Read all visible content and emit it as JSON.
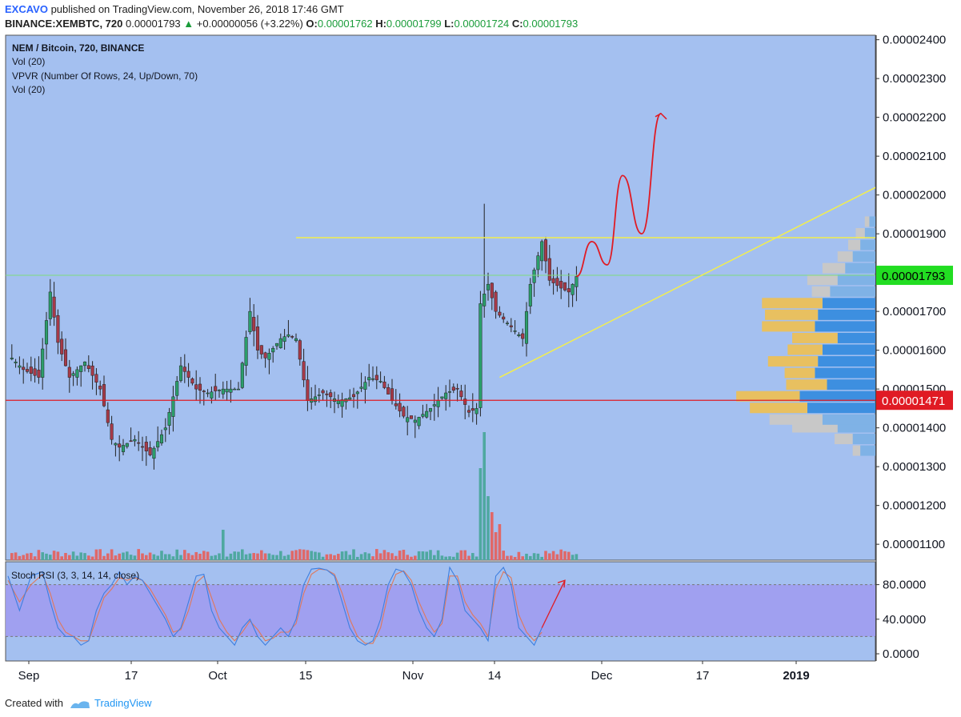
{
  "header": {
    "author": "EXCAVO",
    "published": "published on TradingView.com, November 26, 2018 17:46 GMT",
    "symbol": "BINANCE:XEMBTC, 720",
    "price": "0.00001793",
    "change_arrow": "▲",
    "change": "+0.00000056 (+3.22%)",
    "o_label": "O:",
    "o": "0.00001762",
    "h_label": "H:",
    "h": "0.00001799",
    "l_label": "L:",
    "l": "0.00001724",
    "c_label": "C:",
    "c": "0.00001793"
  },
  "legend": {
    "title": "NEM / Bitcoin, 720, BINANCE",
    "vol1": "Vol (20)",
    "vpvr": "VPVR (Number Of Rows, 24, Up/Down, 70)",
    "vol2": "Vol (20)",
    "stoch": "Stoch RSI (3, 3, 14, 14, close)"
  },
  "footer": {
    "created_with": "Created with",
    "brand": "TradingView",
    "logo_icon": "tradingview-logo-icon"
  },
  "colors": {
    "background": "#a4c0f0",
    "candle_up": "#2b9e6b",
    "candle_down": "#a63a48",
    "vol_up": "#4fa8a0",
    "vol_down": "#e06868",
    "vpvr_up": "#3d8fe0",
    "vpvr_down": "#e8c060",
    "resistance": "#f2ee4e",
    "support": "#e01b24",
    "forecast": "#e01b24",
    "current_price_badge": "#22dd22",
    "stoch_k": "#3d7fe0",
    "stoch_d": "#e0785a",
    "stoch_band": "#a09cf0"
  },
  "chart_data": [
    {
      "type": "candlestick",
      "title": "NEM / Bitcoin, 720, BINANCE",
      "x_ticks": [
        "Sep",
        "17",
        "Oct",
        "15",
        "Nov",
        "14",
        "Dec",
        "17",
        "2019"
      ],
      "y_ticks": [
        "0.00002400",
        "0.00002300",
        "0.00002200",
        "0.00002100",
        "0.00002000",
        "0.00001900",
        "0.00001800",
        "0.00001700",
        "0.00001600",
        "0.00001500",
        "0.00001400",
        "0.00001300",
        "0.00001200",
        "0.00001100"
      ],
      "ylim": [
        1.06e-05,
        2.45e-05
      ],
      "price_labels": {
        "current": "0.00001793",
        "support": "0.00001471"
      },
      "levels": {
        "current": 1.793e-05,
        "support": 1.471e-05,
        "resistance": 1.89e-05
      },
      "close_path": [
        [
          0,
          1.59e-05
        ],
        [
          4,
          1.55e-05
        ],
        [
          8,
          1.53e-05
        ],
        [
          11,
          1.75e-05
        ],
        [
          13,
          1.62e-05
        ],
        [
          16,
          1.53e-05
        ],
        [
          20,
          1.57e-05
        ],
        [
          24,
          1.5e-05
        ],
        [
          27,
          1.37e-05
        ],
        [
          29,
          1.35e-05
        ],
        [
          33,
          1.37e-05
        ],
        [
          37,
          1.33e-05
        ],
        [
          41,
          1.4e-05
        ],
        [
          45,
          1.56e-05
        ],
        [
          49,
          1.5e-05
        ],
        [
          52,
          1.49e-05
        ],
        [
          56,
          1.5e-05
        ],
        [
          60,
          1.5e-05
        ],
        [
          63,
          1.7e-05
        ],
        [
          65,
          1.6e-05
        ],
        [
          67,
          1.58e-05
        ],
        [
          71,
          1.63e-05
        ],
        [
          73,
          1.64e-05
        ],
        [
          75,
          1.63e-05
        ],
        [
          78,
          1.47e-05
        ],
        [
          82,
          1.49e-05
        ],
        [
          86,
          1.47e-05
        ],
        [
          90,
          1.48e-05
        ],
        [
          94,
          1.53e-05
        ],
        [
          97,
          1.52e-05
        ],
        [
          100,
          1.47e-05
        ],
        [
          103,
          1.43e-05
        ],
        [
          106,
          1.42e-05
        ],
        [
          110,
          1.45e-05
        ],
        [
          114,
          1.49e-05
        ],
        [
          117,
          1.5e-05
        ],
        [
          120,
          1.44e-05
        ],
        [
          122,
          1.45e-05
        ],
        [
          123,
          1.72e-05
        ],
        [
          125,
          1.77e-05
        ],
        [
          127,
          1.7e-05
        ],
        [
          131,
          1.66e-05
        ],
        [
          134,
          1.63e-05
        ],
        [
          136,
          1.77e-05
        ],
        [
          139,
          1.88e-05
        ],
        [
          141,
          1.78e-05
        ],
        [
          144,
          1.76e-05
        ],
        [
          146,
          1.75e-05
        ],
        [
          148,
          1.79e-05
        ]
      ],
      "forecast_path": [
        [
          148,
          1.79e-05
        ],
        [
          152,
          1.88e-05
        ],
        [
          156,
          1.82e-05
        ],
        [
          160,
          2.05e-05
        ],
        [
          165,
          1.9e-05
        ],
        [
          170,
          2.21e-05
        ]
      ],
      "resistance_line": {
        "x": [
          75,
          230
        ],
        "y": [
          1.89e-05,
          1.89e-05
        ]
      },
      "ascending_support_line": {
        "x": [
          128,
          230
        ],
        "y": [
          1.53e-05,
          2.04e-05
        ]
      },
      "vpvr_rows": [
        {
          "price": 1.33e-05,
          "up": 0.1,
          "down": 0.05
        },
        {
          "price": 1.36e-05,
          "up": 0.15,
          "down": 0.12
        },
        {
          "price": 1.39e-05,
          "up": 0.25,
          "down": 0.3
        },
        {
          "price": 1.41e-05,
          "up": 0.35,
          "down": 0.35
        },
        {
          "price": 1.44e-05,
          "up": 0.45,
          "down": 0.38
        },
        {
          "price": 1.47e-05,
          "up": 0.5,
          "down": 0.42
        },
        {
          "price": 1.5e-05,
          "up": 0.32,
          "down": 0.27
        },
        {
          "price": 1.53e-05,
          "up": 0.4,
          "down": 0.2
        },
        {
          "price": 1.56e-05,
          "up": 0.38,
          "down": 0.33
        },
        {
          "price": 1.59e-05,
          "up": 0.35,
          "down": 0.23
        },
        {
          "price": 1.62e-05,
          "up": 0.25,
          "down": 0.3
        },
        {
          "price": 1.65e-05,
          "up": 0.4,
          "down": 0.35
        },
        {
          "price": 1.68e-05,
          "up": 0.38,
          "down": 0.35
        },
        {
          "price": 1.71e-05,
          "up": 0.35,
          "down": 0.4
        },
        {
          "price": 1.74e-05,
          "up": 0.3,
          "down": 0.12
        },
        {
          "price": 1.77e-05,
          "up": 0.25,
          "down": 0.2
        },
        {
          "price": 1.8e-05,
          "up": 0.2,
          "down": 0.15
        },
        {
          "price": 1.83e-05,
          "up": 0.15,
          "down": 0.1
        },
        {
          "price": 1.86e-05,
          "up": 0.1,
          "down": 0.08
        },
        {
          "price": 1.89e-05,
          "up": 0.07,
          "down": 0.06
        },
        {
          "price": 1.92e-05,
          "up": 0.04,
          "down": 0.03
        }
      ]
    },
    {
      "type": "line",
      "title": "Stoch RSI (3, 3, 14, 14, close)",
      "y_ticks": [
        "80.0000",
        "40.0000",
        "0.0000"
      ],
      "ylim": [
        0,
        100
      ],
      "band": [
        20,
        80
      ],
      "k_path": [
        [
          0,
          90
        ],
        [
          3,
          50
        ],
        [
          6,
          90
        ],
        [
          9,
          95
        ],
        [
          11,
          60
        ],
        [
          13,
          30
        ],
        [
          15,
          20
        ],
        [
          17,
          20
        ],
        [
          19,
          10
        ],
        [
          21,
          15
        ],
        [
          23,
          50
        ],
        [
          25,
          70
        ],
        [
          27,
          80
        ],
        [
          29,
          95
        ],
        [
          31,
          80
        ],
        [
          33,
          90
        ],
        [
          35,
          85
        ],
        [
          37,
          70
        ],
        [
          39,
          55
        ],
        [
          41,
          40
        ],
        [
          43,
          20
        ],
        [
          45,
          30
        ],
        [
          47,
          60
        ],
        [
          49,
          90
        ],
        [
          51,
          92
        ],
        [
          53,
          50
        ],
        [
          55,
          30
        ],
        [
          57,
          20
        ],
        [
          59,
          10
        ],
        [
          61,
          30
        ],
        [
          63,
          40
        ],
        [
          65,
          20
        ],
        [
          67,
          10
        ],
        [
          69,
          20
        ],
        [
          71,
          30
        ],
        [
          73,
          20
        ],
        [
          75,
          40
        ],
        [
          77,
          80
        ],
        [
          79,
          98
        ],
        [
          81,
          99
        ],
        [
          83,
          97
        ],
        [
          85,
          90
        ],
        [
          87,
          60
        ],
        [
          89,
          30
        ],
        [
          91,
          15
        ],
        [
          93,
          10
        ],
        [
          95,
          15
        ],
        [
          97,
          40
        ],
        [
          99,
          80
        ],
        [
          101,
          98
        ],
        [
          103,
          95
        ],
        [
          105,
          80
        ],
        [
          107,
          50
        ],
        [
          109,
          30
        ],
        [
          111,
          20
        ],
        [
          113,
          40
        ],
        [
          115,
          100
        ],
        [
          117,
          85
        ],
        [
          119,
          50
        ],
        [
          121,
          40
        ],
        [
          123,
          30
        ],
        [
          125,
          15
        ],
        [
          127,
          90
        ],
        [
          129,
          100
        ],
        [
          131,
          80
        ],
        [
          133,
          30
        ],
        [
          135,
          20
        ],
        [
          137,
          10
        ],
        [
          139,
          30
        ]
      ],
      "d_path": [
        [
          0,
          85
        ],
        [
          3,
          60
        ],
        [
          6,
          80
        ],
        [
          9,
          92
        ],
        [
          11,
          70
        ],
        [
          13,
          40
        ],
        [
          15,
          25
        ],
        [
          17,
          20
        ],
        [
          19,
          15
        ],
        [
          21,
          15
        ],
        [
          23,
          40
        ],
        [
          25,
          65
        ],
        [
          27,
          75
        ],
        [
          29,
          88
        ],
        [
          31,
          85
        ],
        [
          33,
          88
        ],
        [
          35,
          85
        ],
        [
          37,
          75
        ],
        [
          39,
          60
        ],
        [
          41,
          45
        ],
        [
          43,
          25
        ],
        [
          45,
          28
        ],
        [
          47,
          50
        ],
        [
          49,
          82
        ],
        [
          51,
          90
        ],
        [
          53,
          65
        ],
        [
          55,
          40
        ],
        [
          57,
          25
        ],
        [
          59,
          15
        ],
        [
          61,
          25
        ],
        [
          63,
          38
        ],
        [
          65,
          28
        ],
        [
          67,
          15
        ],
        [
          69,
          18
        ],
        [
          71,
          25
        ],
        [
          73,
          25
        ],
        [
          75,
          35
        ],
        [
          77,
          70
        ],
        [
          79,
          92
        ],
        [
          81,
          98
        ],
        [
          83,
          97
        ],
        [
          85,
          92
        ],
        [
          87,
          70
        ],
        [
          89,
          40
        ],
        [
          91,
          20
        ],
        [
          93,
          12
        ],
        [
          95,
          12
        ],
        [
          97,
          30
        ],
        [
          99,
          70
        ],
        [
          101,
          92
        ],
        [
          103,
          96
        ],
        [
          105,
          85
        ],
        [
          107,
          60
        ],
        [
          109,
          40
        ],
        [
          111,
          25
        ],
        [
          113,
          35
        ],
        [
          115,
          90
        ],
        [
          117,
          90
        ],
        [
          119,
          60
        ],
        [
          121,
          45
        ],
        [
          123,
          35
        ],
        [
          125,
          20
        ],
        [
          127,
          75
        ],
        [
          129,
          95
        ],
        [
          131,
          88
        ],
        [
          133,
          45
        ],
        [
          135,
          25
        ],
        [
          137,
          15
        ],
        [
          139,
          25
        ]
      ],
      "forecast_arrow": {
        "x": [
          139,
          145
        ],
        "y": [
          30,
          85
        ]
      }
    }
  ]
}
